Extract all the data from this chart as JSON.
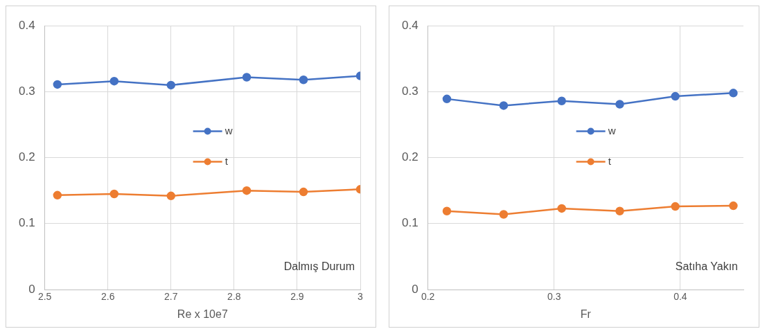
{
  "chart_data": [
    {
      "type": "line",
      "xlabel": "Re x 10e7",
      "x": [
        2.52,
        2.61,
        2.7,
        2.82,
        2.91,
        3.0
      ],
      "xlim": [
        2.5,
        3
      ],
      "xticks": [
        2.5,
        2.6,
        2.7,
        2.8,
        2.9,
        3
      ],
      "ylim": [
        0,
        0.4
      ],
      "yticks": [
        0,
        0.1,
        0.2,
        0.3,
        0.4
      ],
      "grid": true,
      "legend": "center",
      "marker": "circle",
      "annotations": [
        "Dalmış Durum"
      ],
      "series": [
        {
          "name": "w",
          "color": "#4472c4",
          "values": [
            0.311,
            0.316,
            0.31,
            0.322,
            0.318,
            0.324
          ]
        },
        {
          "name": "t",
          "color": "#ed7d31",
          "values": [
            0.143,
            0.145,
            0.142,
            0.15,
            0.148,
            0.152
          ]
        }
      ]
    },
    {
      "type": "line",
      "xlabel": "Fr",
      "x": [
        0.215,
        0.26,
        0.306,
        0.352,
        0.396,
        0.442
      ],
      "xlim": [
        0.2,
        0.45
      ],
      "xticks": [
        0.2,
        0.3,
        0.4
      ],
      "ylim": [
        0,
        0.4
      ],
      "yticks": [
        0,
        0.1,
        0.2,
        0.3,
        0.4
      ],
      "grid": true,
      "legend": "center",
      "marker": "circle",
      "annotations": [
        "Satıha Yakın"
      ],
      "series": [
        {
          "name": "w",
          "color": "#4472c4",
          "values": [
            0.289,
            0.279,
            0.286,
            0.281,
            0.293,
            0.298
          ]
        },
        {
          "name": "t",
          "color": "#ed7d31",
          "values": [
            0.119,
            0.114,
            0.123,
            0.119,
            0.126,
            0.127
          ]
        }
      ]
    }
  ]
}
